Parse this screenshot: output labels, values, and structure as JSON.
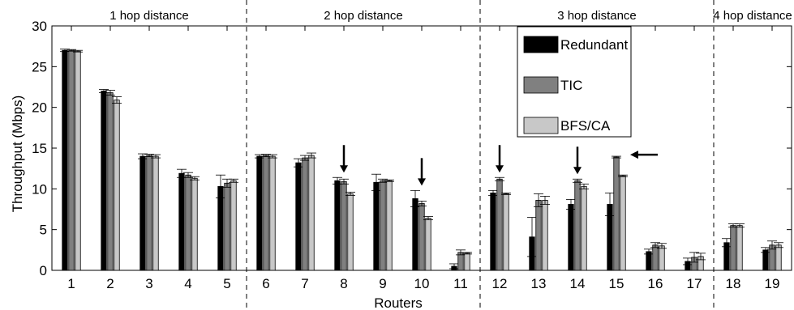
{
  "chart_data": {
    "type": "bar",
    "xlabel": "Routers",
    "ylabel": "Throughput (Mbps)",
    "ylim": [
      0,
      30
    ],
    "yticks": [
      0,
      5,
      10,
      15,
      20,
      25,
      30
    ],
    "categories": [
      "1",
      "2",
      "3",
      "4",
      "5",
      "6",
      "7",
      "8",
      "9",
      "10",
      "11",
      "12",
      "13",
      "14",
      "15",
      "16",
      "17",
      "18",
      "19"
    ],
    "series": [
      {
        "name": "Redundant",
        "color": "#000000",
        "values": [
          27.0,
          22.0,
          14.0,
          11.9,
          10.3,
          14.0,
          13.2,
          11.0,
          10.8,
          8.8,
          0.5,
          9.5,
          4.1,
          8.1,
          8.1,
          2.3,
          1.1,
          3.4,
          2.5
        ],
        "errors": [
          0.15,
          0.2,
          0.3,
          0.5,
          1.4,
          0.2,
          0.5,
          0.4,
          1.0,
          1.0,
          0.3,
          0.3,
          2.4,
          0.6,
          1.4,
          0.3,
          0.4,
          0.5,
          0.3
        ]
      },
      {
        "name": "TIC",
        "color": "#808080",
        "values": [
          27.0,
          21.8,
          14.1,
          11.7,
          10.7,
          14.1,
          13.8,
          10.9,
          11.0,
          8.2,
          2.2,
          11.2,
          8.6,
          11.0,
          13.9,
          3.1,
          1.6,
          5.5,
          3.1
        ],
        "errors": [
          0.1,
          0.3,
          0.15,
          0.3,
          0.5,
          0.15,
          0.3,
          0.3,
          0.2,
          0.3,
          0.3,
          0.2,
          0.8,
          0.2,
          0.1,
          0.3,
          0.6,
          0.2,
          0.5
        ]
      },
      {
        "name": "BFS/CA",
        "color": "#c8c8c8",
        "values": [
          26.9,
          20.9,
          14.0,
          11.3,
          11.0,
          14.0,
          14.1,
          9.4,
          11.0,
          6.4,
          2.1,
          9.4,
          8.6,
          10.3,
          11.6,
          3.0,
          1.7,
          5.5,
          3.1
        ],
        "errors": [
          0.1,
          0.4,
          0.2,
          0.2,
          0.2,
          0.2,
          0.3,
          0.2,
          0.1,
          0.2,
          0.1,
          0.1,
          0.5,
          0.3,
          0.1,
          0.3,
          0.4,
          0.2,
          0.3
        ]
      }
    ],
    "separators_after": [
      "5",
      "11",
      "17"
    ],
    "region_labels": [
      "1 hop distance",
      "2 hop distance",
      "3 hop distance",
      "4 hop distance"
    ],
    "arrows": [
      {
        "category": "8",
        "direction": "down"
      },
      {
        "category": "10",
        "direction": "down"
      },
      {
        "category": "12",
        "direction": "down"
      },
      {
        "category": "14",
        "direction": "down"
      },
      {
        "category": "15",
        "direction": "left"
      }
    ],
    "legend_position": "top-right-of-center",
    "grid": false
  }
}
